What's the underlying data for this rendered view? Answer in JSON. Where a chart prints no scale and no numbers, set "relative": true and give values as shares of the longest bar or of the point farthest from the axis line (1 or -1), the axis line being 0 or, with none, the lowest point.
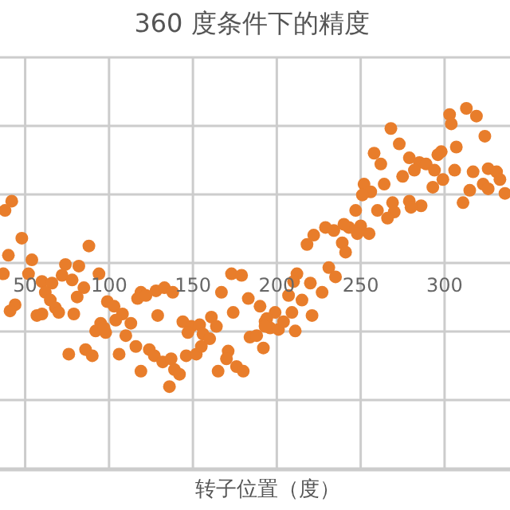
{
  "chart_data": {
    "type": "scatter",
    "title": "360 度条件下的精度",
    "xlabel": "转子位置（度）",
    "relative": true,
    "xlim": [
      35,
      339
    ],
    "xticks": [
      50,
      100,
      150,
      200,
      250,
      300
    ],
    "tick_labels": "x",
    "grid": true,
    "marker": "circle",
    "series": [
      {
        "color": "#e87d2b",
        "x": [
          42,
          38,
          48,
          40,
          88,
          54,
          37,
          74,
          82,
          94,
          52,
          60,
          66,
          72,
          78,
          85,
          62,
          81,
          65,
          44,
          41,
          68,
          70,
          79,
          57,
          60,
          99,
          103,
          108,
          104,
          113,
          95,
          92,
          98,
          97,
          110,
          76,
          86,
          90,
          106,
          116,
          119,
          117,
          122,
          128,
          133,
          138,
          129,
          144,
          149,
          154,
          156,
          147,
          124,
          127,
          132,
          137,
          119,
          139,
          142,
          136,
          146,
          152,
          155,
          160,
          161,
          164,
          167,
          173,
          179,
          174,
          183,
          190,
          193,
          184,
          188,
          192,
          171,
          170,
          165,
          176,
          180,
          313,
          319,
          303,
          304,
          324,
          268,
          273,
          258,
          262,
          307,
          298,
          296,
          279,
          285,
          289,
          294,
          306,
          299,
          293,
          282,
          275,
          317,
          326,
          331,
          333,
          336,
          323,
          326,
          315,
          311,
          286,
          279,
          280,
          269,
          270,
          266,
          260,
          252,
          256,
          264,
          251,
          247,
          250,
          255,
          248,
          243,
          240,
          239,
          241,
          234,
          229,
          222,
          218,
          231,
          235,
          212,
          210,
          220,
          227,
          215,
          221,
          207,
          209,
          199,
          194,
          196,
          201,
          193,
          204,
          211
        ],
        "values": [
          0.4,
          0.34,
          0.16,
          0.05,
          0.11,
          0.02,
          -0.07,
          -0.01,
          -0.02,
          -0.07,
          -0.07,
          -0.12,
          -0.13,
          -0.08,
          -0.11,
          -0.16,
          -0.19,
          -0.22,
          -0.24,
          -0.27,
          -0.31,
          -0.29,
          -0.32,
          -0.33,
          -0.34,
          -0.33,
          -0.25,
          -0.28,
          -0.33,
          -0.37,
          -0.39,
          -0.39,
          -0.44,
          -0.45,
          -0.42,
          -0.47,
          -0.59,
          -0.56,
          -0.6,
          -0.59,
          -0.54,
          -0.19,
          -0.23,
          -0.21,
          -0.18,
          -0.16,
          -0.19,
          -0.34,
          -0.38,
          -0.41,
          -0.4,
          -0.46,
          -0.45,
          -0.56,
          -0.6,
          -0.64,
          -0.62,
          -0.7,
          -0.69,
          -0.72,
          -0.8,
          -0.6,
          -0.59,
          -0.54,
          -0.49,
          -0.35,
          -0.41,
          -0.19,
          -0.07,
          -0.08,
          -0.32,
          -0.23,
          -0.28,
          -0.38,
          -0.48,
          -0.47,
          -0.55,
          -0.57,
          -0.62,
          -0.7,
          -0.67,
          -0.7,
          1.0,
          0.95,
          0.96,
          0.9,
          0.82,
          0.87,
          0.77,
          0.71,
          0.64,
          0.75,
          0.72,
          0.7,
          0.68,
          0.65,
          0.64,
          0.6,
          0.6,
          0.54,
          0.49,
          0.6,
          0.56,
          0.59,
          0.61,
          0.59,
          0.54,
          0.45,
          0.51,
          0.48,
          0.47,
          0.39,
          0.37,
          0.4,
          0.36,
          0.39,
          0.33,
          0.29,
          0.34,
          0.51,
          0.46,
          0.51,
          0.44,
          0.34,
          0.24,
          0.19,
          0.19,
          0.23,
          0.25,
          0.13,
          0.07,
          0.21,
          0.23,
          0.18,
          0.12,
          -0.03,
          -0.09,
          -0.07,
          -0.12,
          -0.13,
          -0.19,
          -0.24,
          -0.34,
          -0.21,
          -0.32,
          -0.32,
          -0.36,
          -0.42,
          -0.43,
          -0.41,
          -0.38,
          -0.44
        ]
      }
    ]
  }
}
